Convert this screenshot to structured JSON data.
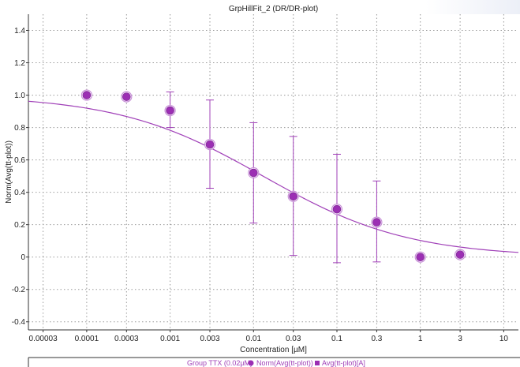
{
  "chart_data": {
    "type": "scatter",
    "title": "GrpHillFit_2 (DR/DR-plot)",
    "xlabel": "Concentration [µM]",
    "ylabel": "Norm(Avg(tt-plot))",
    "x_scale": "log",
    "xlim": [
      2e-05,
      15
    ],
    "ylim": [
      -0.45,
      1.5
    ],
    "x_ticks": [
      {
        "value": 3e-05,
        "label": "0.00003"
      },
      {
        "value": 0.0001,
        "label": "0.0001"
      },
      {
        "value": 0.0003,
        "label": "0.0003"
      },
      {
        "value": 0.001,
        "label": "0.001"
      },
      {
        "value": 0.003,
        "label": "0.003"
      },
      {
        "value": 0.01,
        "label": "0.01"
      },
      {
        "value": 0.03,
        "label": "0.03"
      },
      {
        "value": 0.1,
        "label": "0.1"
      },
      {
        "value": 0.3,
        "label": "0.3"
      },
      {
        "value": 1,
        "label": "1"
      },
      {
        "value": 3,
        "label": "3"
      },
      {
        "value": 10,
        "label": "10"
      }
    ],
    "y_ticks": [
      {
        "value": 1.4,
        "label": "1.4"
      },
      {
        "value": 1.2,
        "label": "1.2"
      },
      {
        "value": 1.0,
        "label": "1.0"
      },
      {
        "value": 0.8,
        "label": "0.8"
      },
      {
        "value": 0.6,
        "label": "0.6"
      },
      {
        "value": 0.4,
        "label": "0.4"
      },
      {
        "value": 0.2,
        "label": "0.2"
      },
      {
        "value": 0,
        "label": "0"
      },
      {
        "value": -0.2,
        "label": "-0.2"
      },
      {
        "value": -0.4,
        "label": "-0.4"
      }
    ],
    "grid": true,
    "grid_style": "dotted",
    "series": [
      {
        "name": "Norm(Avg(tt-plot))",
        "color": "#a040b8",
        "marker": "circle",
        "points": [
          {
            "x": 0.0001,
            "y": 1.0,
            "err_low": 1.0,
            "err_high": 1.0
          },
          {
            "x": 0.0003,
            "y": 0.99,
            "err_low": 0.99,
            "err_high": 0.99
          },
          {
            "x": 0.001,
            "y": 0.905,
            "err_low": 0.8,
            "err_high": 1.02
          },
          {
            "x": 0.003,
            "y": 0.695,
            "err_low": 0.425,
            "err_high": 0.97
          },
          {
            "x": 0.01,
            "y": 0.52,
            "err_low": 0.21,
            "err_high": 0.83
          },
          {
            "x": 0.03,
            "y": 0.375,
            "err_low": 0.01,
            "err_high": 0.745
          },
          {
            "x": 0.1,
            "y": 0.295,
            "err_low": -0.035,
            "err_high": 0.635
          },
          {
            "x": 0.3,
            "y": 0.215,
            "err_low": -0.03,
            "err_high": 0.47
          },
          {
            "x": 1,
            "y": 0.0,
            "err_low": 0.0,
            "err_high": 0.0
          },
          {
            "x": 3,
            "y": 0.015,
            "err_low": 0.015,
            "err_high": 0.015
          }
        ]
      },
      {
        "name": "Avg(tt-plot)[A]",
        "color": "#a040b8",
        "marker": "square",
        "points": []
      }
    ],
    "fit_curve": {
      "type": "hill",
      "color": "#a040b8",
      "top": 1.0,
      "bottom": 0.0,
      "ec50": 0.013,
      "hill_slope": 0.5
    },
    "legend": {
      "placement": "bottom",
      "group_label": "Group TTX (0.02µM)",
      "entries": [
        {
          "label": "Norm(Avg(tt-plot))",
          "marker": "circle"
        },
        {
          "label": "Avg(tt-plot)[A]",
          "marker": "square"
        }
      ]
    }
  }
}
